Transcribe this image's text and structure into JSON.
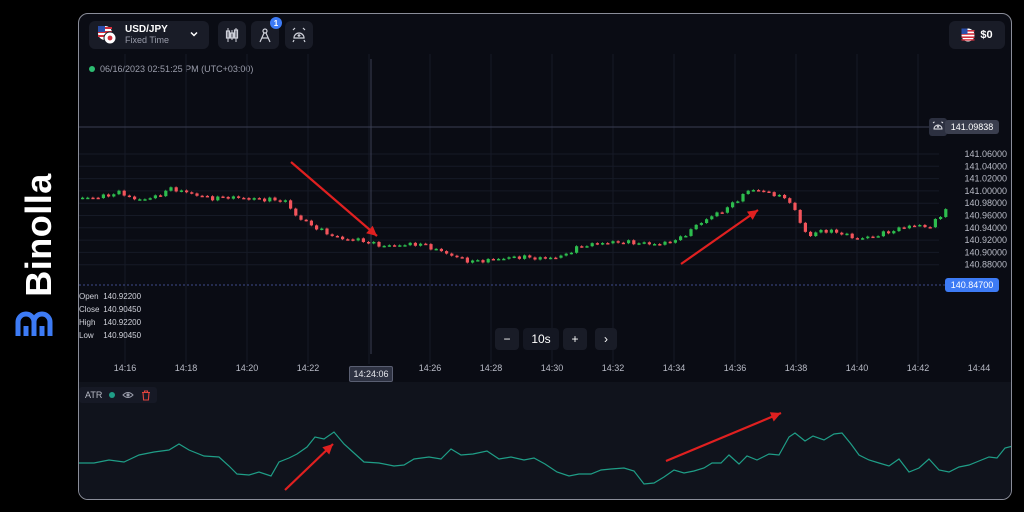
{
  "brand": {
    "name": "Binolla"
  },
  "toolbar": {
    "asset": {
      "name": "USD/JPY",
      "mode": "Fixed Time"
    },
    "indicators_badge": "1",
    "balance": "$0"
  },
  "chart": {
    "timestamp": "06/16/2023 02:51:25 PM (UTC+03:00)",
    "alarm_price": "141.09838",
    "current_price": "140.84700",
    "price_ticks": [
      "141.06000",
      "141.04000",
      "141.02000",
      "141.00000",
      "140.98000",
      "140.96000",
      "140.94000",
      "140.92000",
      "140.90000",
      "140.88000"
    ],
    "time_ticks": [
      "14:16",
      "14:18",
      "14:20",
      "14:22",
      "14:26",
      "14:28",
      "14:30",
      "14:32",
      "14:34",
      "14:36",
      "14:38",
      "14:40",
      "14:42",
      "14:44"
    ],
    "crosshair_time": "14:24:06",
    "ohlc": {
      "open_label": "Open",
      "open": "140.92200",
      "close_label": "Close",
      "close": "140.90450",
      "high_label": "High",
      "high": "140.92200",
      "low_label": "Low",
      "low": "140.90450"
    },
    "timeframe": {
      "minus": "−",
      "value": "10s",
      "plus": "+",
      "next": "›"
    },
    "colors": {
      "up": "#2dbd4e",
      "down": "#f2545b",
      "accent": "#3d7bf5",
      "atr": "#1f9e87",
      "arrow": "#e02020"
    }
  },
  "atr": {
    "label": "ATR"
  }
}
